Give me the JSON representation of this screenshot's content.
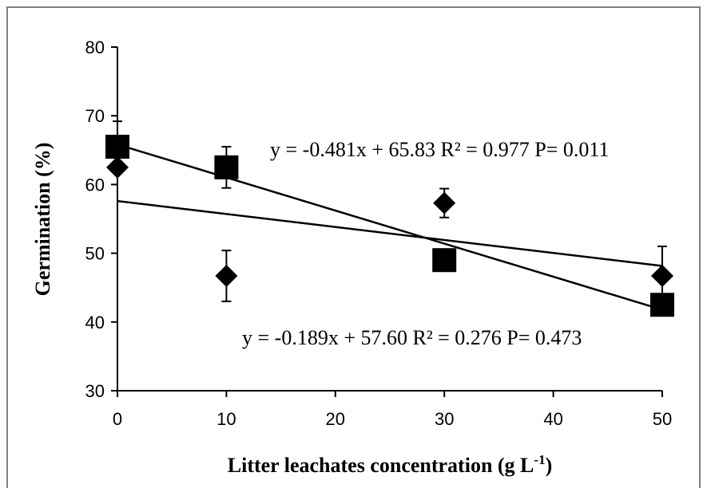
{
  "chart_data": {
    "type": "scatter",
    "xlabel": "Litter leachates concentration (g L",
    "xlabel_sup": "-1",
    "xlabel_end": ")",
    "ylabel": "Germination (%)",
    "xlim": [
      0,
      50
    ],
    "ylim": [
      30,
      80
    ],
    "x_ticks": [
      "0",
      "10",
      "20",
      "30",
      "40",
      "50"
    ],
    "y_ticks": [
      "30",
      "40",
      "50",
      "60",
      "70",
      "80"
    ],
    "grid": false,
    "legend": "none",
    "series": [
      {
        "marker": "square",
        "color": "#000000",
        "points": [
          {
            "x": 0,
            "y": 65.5,
            "err": 3.7
          },
          {
            "x": 10,
            "y": 62.5,
            "err": 3.0
          },
          {
            "x": 30,
            "y": 49.0,
            "err": 0
          },
          {
            "x": 50,
            "y": 42.5,
            "err": 0
          }
        ],
        "trend": {
          "slope": -0.481,
          "intercept": 65.83
        },
        "equation": "y = -0.481x + 65.83 R² = 0.977 P= 0.011"
      },
      {
        "marker": "diamond",
        "color": "#000000",
        "points": [
          {
            "x": 0,
            "y": 62.5,
            "err": 0
          },
          {
            "x": 10,
            "y": 46.7,
            "err": 3.7
          },
          {
            "x": 30,
            "y": 57.3,
            "err": 2.1
          },
          {
            "x": 50,
            "y": 46.7,
            "err": 4.3
          }
        ],
        "trend": {
          "slope": -0.189,
          "intercept": 57.6
        },
        "equation": "y = -0.189x + 57.60 R² = 0.276 P= 0.473"
      }
    ]
  }
}
